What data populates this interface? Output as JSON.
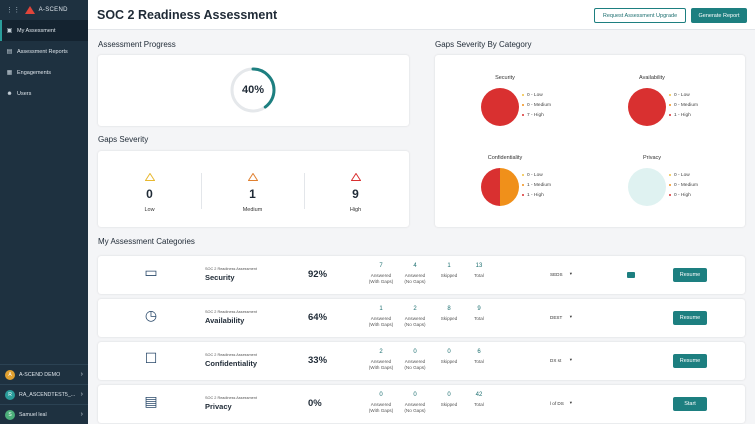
{
  "sidebar": {
    "logo_text": "A-SCEND",
    "grid_icon": "grid-icon",
    "items": [
      {
        "label": "My Assessment",
        "icon": "clipboard-icon",
        "glyph": "▣",
        "active": true
      },
      {
        "label": "Assessment Reports",
        "icon": "report-icon",
        "glyph": "▤",
        "active": false
      },
      {
        "label": "Engagements",
        "icon": "briefcase-icon",
        "glyph": "▦",
        "active": false
      },
      {
        "label": "Users",
        "icon": "users-icon",
        "glyph": "☻",
        "active": false
      }
    ],
    "accounts": [
      {
        "badge": "A",
        "name": "A-SCEND DEMO",
        "color": "#e0a030"
      },
      {
        "badge": "R",
        "name": "RA_ASCENDTEST5_...",
        "color": "#2a9d9b"
      },
      {
        "badge": "S",
        "name": "Samuel leal",
        "color": "#4caf7a"
      }
    ]
  },
  "header": {
    "title": "SOC 2 Readiness Assessment",
    "upgrade_label": "Request Assessment Upgrade",
    "report_label": "Generate Report"
  },
  "progress": {
    "title": "Assessment Progress",
    "percent_label": "40%",
    "fraction": 0.4
  },
  "severity": {
    "title": "Gaps Severity",
    "items": [
      {
        "label": "Low",
        "count": "0",
        "color": "#e8b830"
      },
      {
        "label": "Medium",
        "count": "1",
        "color": "#e08030"
      },
      {
        "label": "High",
        "count": "9",
        "color": "#d93030"
      }
    ]
  },
  "gaps_by_category": {
    "title": "Gaps Severity By Category",
    "categories": [
      {
        "name": "Security",
        "legend": [
          "0 - Low",
          "0 - Medium",
          "7 - High"
        ],
        "low": 0,
        "medium": 0,
        "high": 7
      },
      {
        "name": "Availability",
        "legend": [
          "0 - Low",
          "0 - Medium",
          "1 - High"
        ],
        "low": 0,
        "medium": 0,
        "high": 1
      },
      {
        "name": "Confidentiality",
        "legend": [
          "0 - Low",
          "1 - Medium",
          "1 - High"
        ],
        "low": 0,
        "medium": 1,
        "high": 1
      },
      {
        "name": "Privacy",
        "legend": [
          "0 - Low",
          "0 - Medium",
          "0 - High"
        ],
        "low": 0,
        "medium": 0,
        "high": 0
      }
    ],
    "colors": {
      "low": "#f0c040",
      "medium": "#f0901a",
      "high": "#d93030",
      "empty": "#dff2f1"
    }
  },
  "categories": {
    "title": "My Assessment Categories",
    "rows": [
      {
        "subtitle": "SOC 2 Readiness Assessment",
        "name": "Security",
        "percent": "92%",
        "answered_gaps": "7",
        "answered_no_gaps": "4",
        "skipped": "1",
        "total": "13",
        "select": "SEDS",
        "button": "Resume",
        "icon": "security-illustration-icon"
      },
      {
        "subtitle": "SOC 2 Readiness Assessment",
        "name": "Availability",
        "percent": "64%",
        "answered_gaps": "1",
        "answered_no_gaps": "2",
        "skipped": "8",
        "total": "9",
        "select": "DEST",
        "button": "Resume",
        "icon": "stopwatch-illustration-icon"
      },
      {
        "subtitle": "SOC 2 Readiness Assessment",
        "name": "Confidentiality",
        "percent": "33%",
        "answered_gaps": "2",
        "answered_no_gaps": "0",
        "skipped": "0",
        "total": "6",
        "select": "DX st",
        "button": "Resume",
        "icon": "confidentiality-illustration-icon"
      },
      {
        "subtitle": "SOC 2 Readiness Assessment",
        "name": "Privacy",
        "percent": "0%",
        "answered_gaps": "0",
        "answered_no_gaps": "0",
        "skipped": "0",
        "total": "42",
        "select": "l of DS",
        "button": "Start",
        "icon": "privacy-illustration-icon"
      }
    ],
    "labels": {
      "answered_gaps": [
        "Answered",
        "(With Gaps)"
      ],
      "answered_no_gaps": [
        "Answered",
        "(No Gaps)"
      ],
      "skipped": "Skipped",
      "total": "Total"
    }
  }
}
